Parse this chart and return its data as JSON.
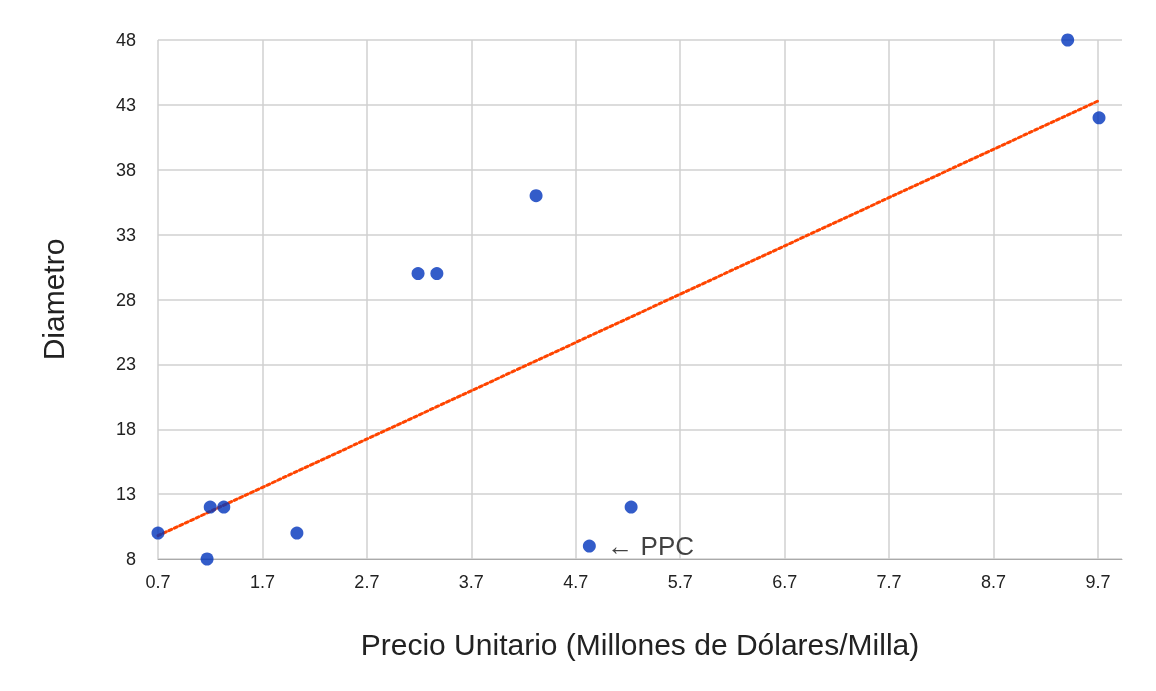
{
  "chart_data": {
    "type": "scatter",
    "xlabel": "Precio Unitario (Millones de Dólares/Milla)",
    "ylabel": "Diametro",
    "xlim": [
      0.7,
      9.93
    ],
    "xticks": [
      0.7,
      1.7,
      2.7,
      3.7,
      4.7,
      5.7,
      6.7,
      7.7,
      8.7,
      9.7
    ],
    "ylim": [
      8,
      48
    ],
    "yticks": [
      8,
      13,
      18,
      23,
      28,
      33,
      38,
      43,
      48
    ],
    "grid": true,
    "series": [
      {
        "marker": "circle",
        "color": "#0033bb",
        "x": [
          0.7,
          1.17,
          1.2,
          1.33,
          2.03,
          3.19,
          3.37,
          4.32,
          4.83,
          5.23,
          9.41,
          9.71
        ],
        "values": [
          10,
          8,
          12,
          12,
          10,
          30,
          30,
          36,
          9,
          12,
          48,
          42
        ]
      },
      {
        "type": "line",
        "color": "#ff4500",
        "line_style": "dotted",
        "x": [
          0.7,
          9.7
        ],
        "values": [
          9.8,
          43.3
        ]
      }
    ],
    "annotations": [
      {
        "text": "← PPC",
        "x": 4.83,
        "y": 9
      }
    ]
  }
}
